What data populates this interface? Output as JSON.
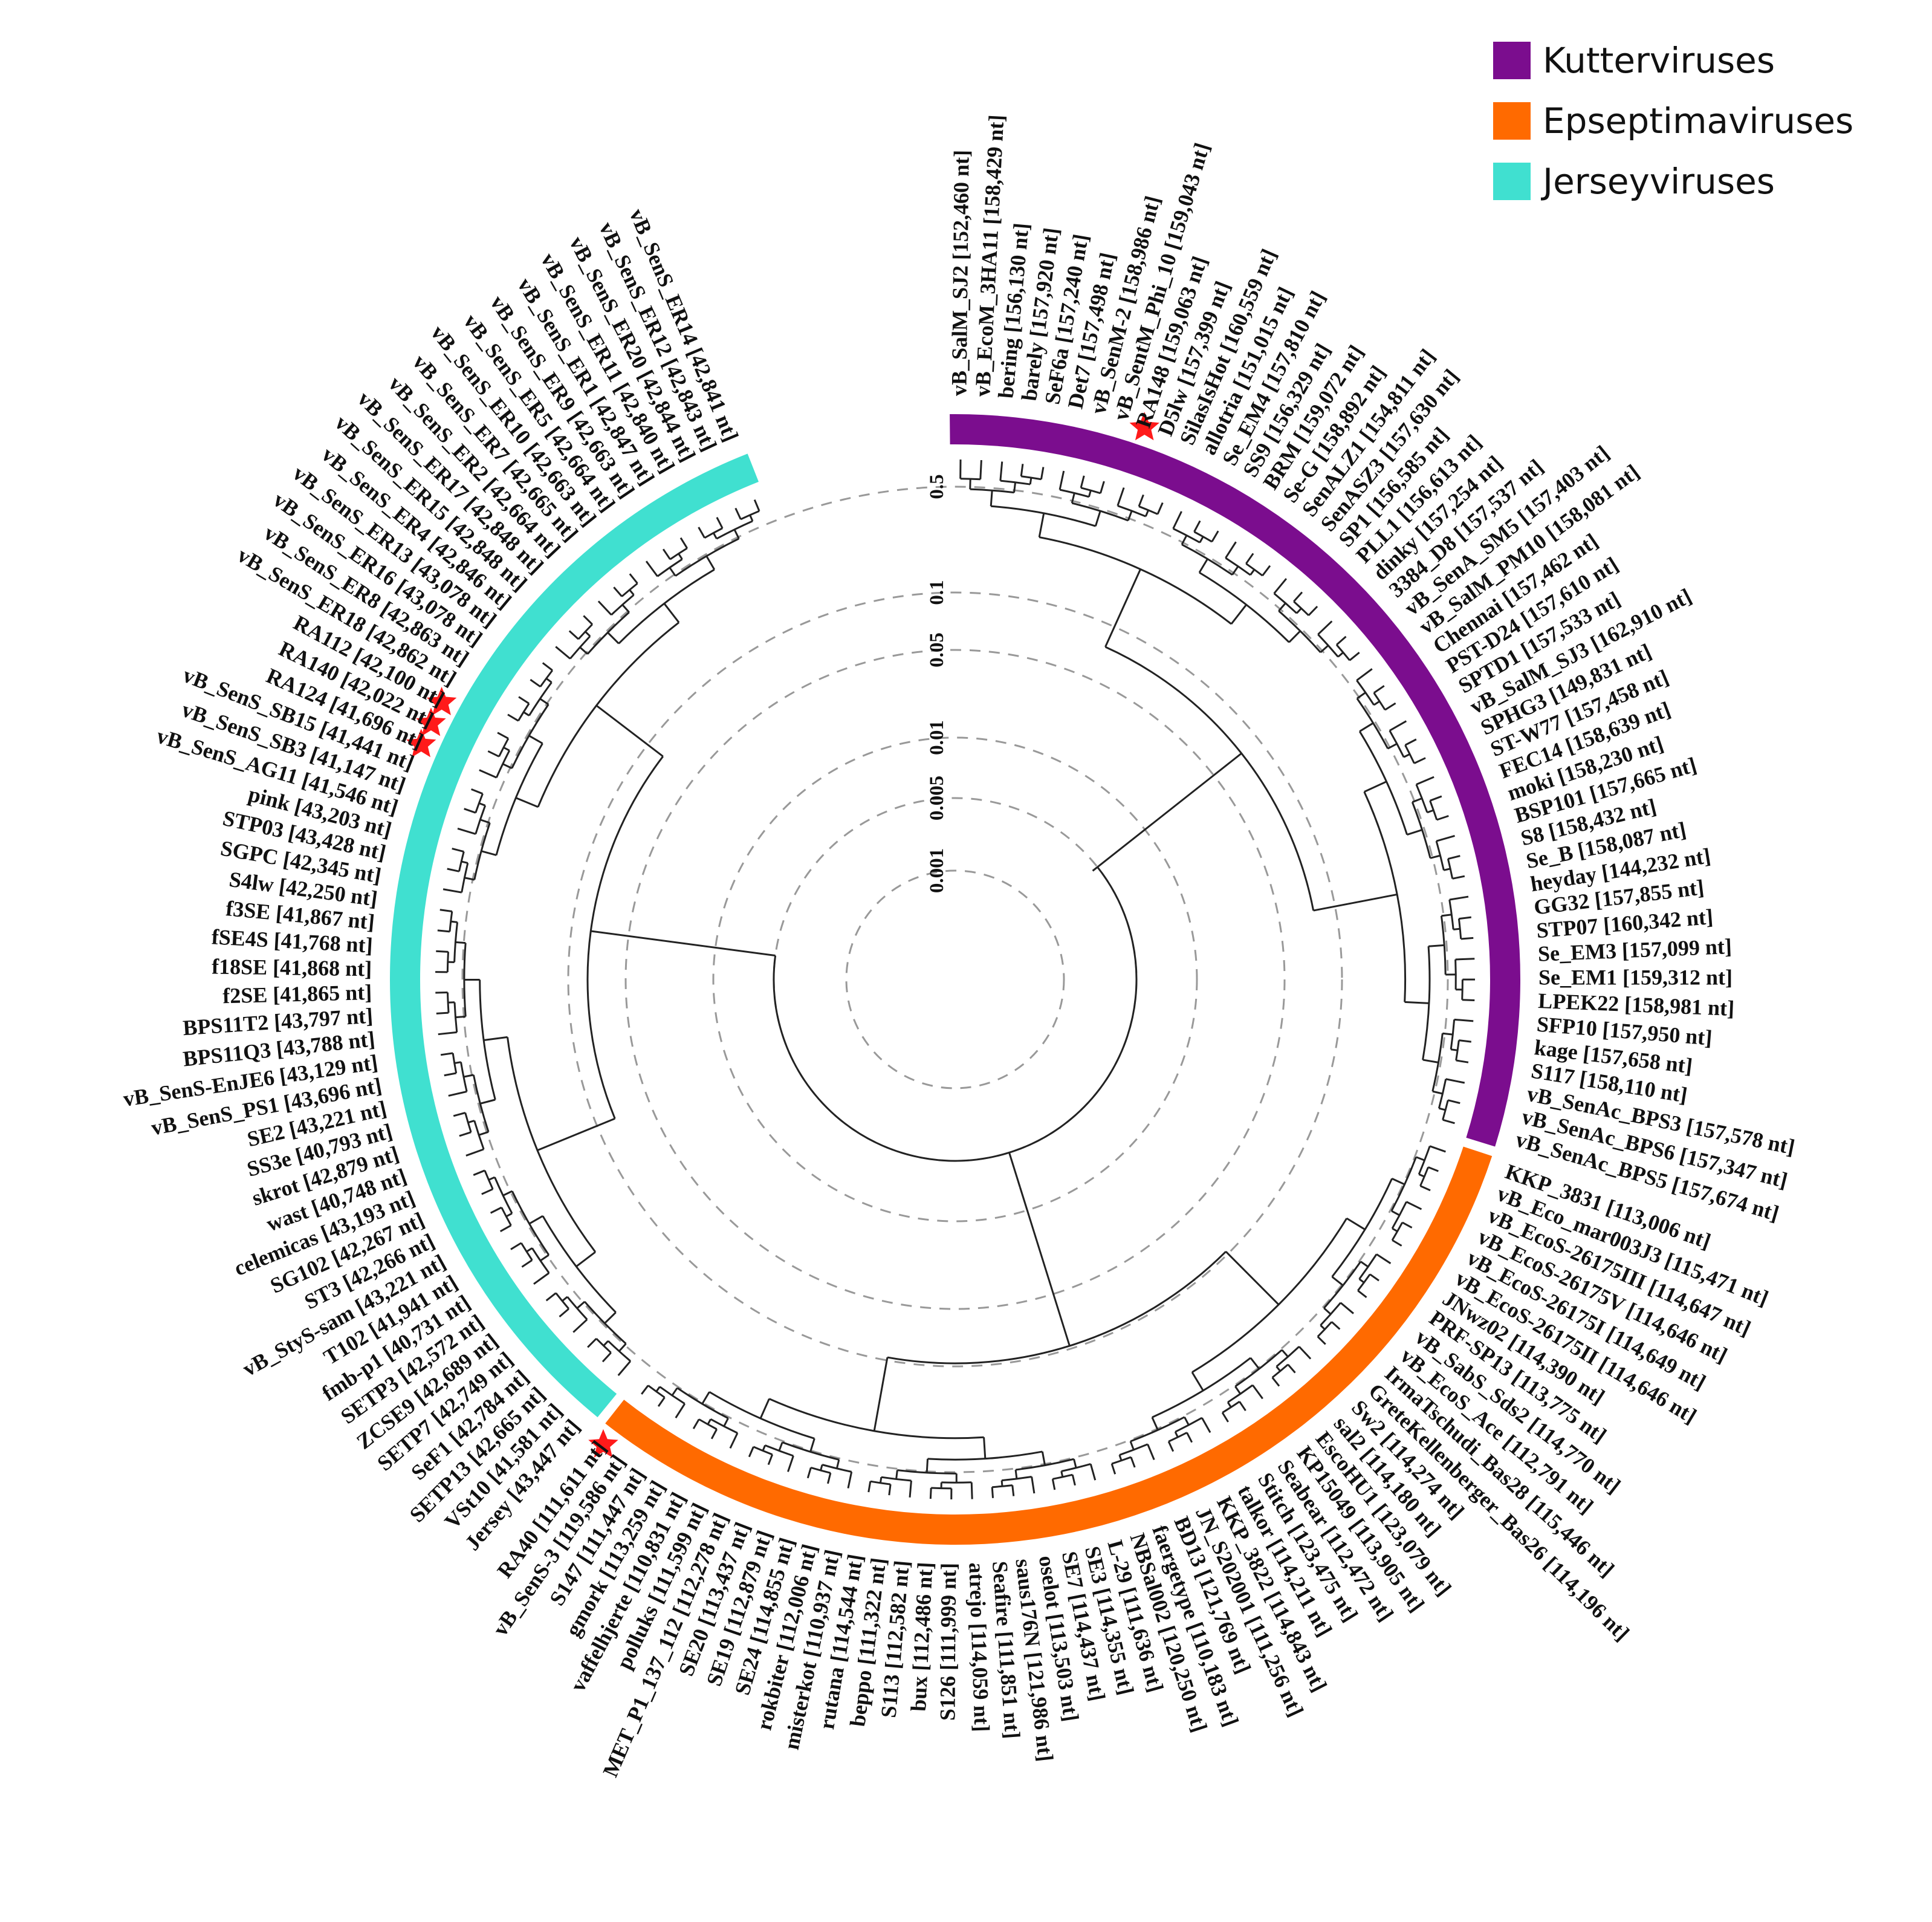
{
  "legend": [
    {
      "label": "Kutterviruses",
      "color": "#7b0d8e"
    },
    {
      "label": "Epseptimaviruses",
      "color": "#ff6a00"
    },
    {
      "label": "Jerseyviruses",
      "color": "#40e0d0"
    }
  ],
  "scale_labels": [
    "0.5",
    "0.1",
    "0.05",
    "0.01",
    "0.005",
    "0.001"
  ],
  "star_color": "#ff1a1a",
  "clades": [
    {
      "name": "Kutterviruses",
      "color": "#7b0d8e",
      "leaves": [
        "vB_SalM_SJ2 [152,460 nt]",
        "vB_EcoM_3HA11 [158,429 nt]",
        "bering [156,130 nt]",
        "barely [157,920 nt]",
        "SeF6a [157,240 nt]",
        "Det7 [157,498 nt]",
        "vB_SenM-2 [158,986 nt]",
        "vB_SentM_Phi_10 [159,043 nt]",
        "RA148 [159,063 nt]",
        "D5lw [157,399 nt]",
        "SilasIsHot [160,559 nt]",
        "allotria [151,015 nt]",
        "Se_EM4 [157,810 nt]",
        "SS9 [156,329 nt]",
        "BRM [159,072 nt]",
        "Se-G [158,892 nt]",
        "SenALZ1 [154,811 nt]",
        "SenASZ3 [157,630 nt]",
        "SP1 [156,585 nt]",
        "PLL1 [156,613 nt]",
        "dinky [157,254 nt]",
        "3384_D8 [157,537 nt]",
        "vB_SenA_SM5 [157,403 nt]",
        "vB_SalM_PM10 [158,081 nt]",
        "Chennai [157,462 nt]",
        "PST-D24 [157,610 nt]",
        "SPTD1 [157,533 nt]",
        "vB_SalM_SJ3 [162,910 nt]",
        "SPHG3 [149,831 nt]",
        "ST-W77 [157,458 nt]",
        "FEC14 [158,639 nt]",
        "moki [158,230 nt]",
        "BSP101 [157,665 nt]",
        "S8 [158,432 nt]",
        "Se_B [158,087 nt]",
        "heyday [144,232 nt]",
        "GG32 [157,855 nt]",
        "STP07 [160,342 nt]",
        "Se_EM3 [157,099 nt]",
        "Se_EM1 [159,312 nt]",
        "LPEK22 [158,981 nt]",
        "SFP10 [157,950 nt]",
        "kage [157,658 nt]",
        "S117 [158,110 nt]",
        "vB_SenAc_BPS3 [157,578 nt]",
        "vB_SenAc_BPS6 [157,347 nt]",
        "vB_SenAc_BPS5 [157,674 nt]"
      ]
    },
    {
      "name": "Epseptimaviruses",
      "color": "#ff6a00",
      "leaves": [
        "KKP_3831 [113,006 nt]",
        "vB_Eco_mar003J3 [115,471 nt]",
        "vB_EcoS-26175III [114,647 nt]",
        "vB_EcoS-26175V [114,646 nt]",
        "vB_EcoS-26175I [114,649 nt]",
        "vB_EcoS-26175II [114,646 nt]",
        "JNwz02 [114,390 nt]",
        "PRF-SP13 [113,775 nt]",
        "vB_SabS_Sds2 [114,770 nt]",
        "vB_EcoS_Ace [112,791 nt]",
        "IrmaTschudi_Bas28 [115,446 nt]",
        "GreteKellenberger_Bas26 [114,196 nt]",
        "Sw2 [114,274 nt]",
        "sal2 [114,180 nt]",
        "EscoHU1 [123,079 nt]",
        "KP15049 [113,905 nt]",
        "Seabear [112,472 nt]",
        "Stitch [123,475 nt]",
        "talkor [114,211 nt]",
        "KKP_3822 [114,843 nt]",
        "JN_S202001 [111,256 nt]",
        "BD13 [121,769 nt]",
        "faergetype [110,183 nt]",
        "NBSal002 [120,250 nt]",
        "L-29 [111,636 nt]",
        "SE3 [114,355 nt]",
        "SE7 [114,437 nt]",
        "oselot [113,503 nt]",
        "saus176N [121,986 nt]",
        "Seafire [111,851 nt]",
        "atrejo [114,059 nt]",
        "S126 [111,999 nt]",
        "bux [112,486 nt]",
        "S113 [112,582 nt]",
        "beppo [111,322 nt]",
        "rutana [114,544 nt]",
        "misterkot [110,937 nt]",
        "rokbiter [112,006 nt]",
        "SE24 [114,855 nt]",
        "SE19 [112,879 nt]",
        "SE20 [113,437 nt]",
        "MET_P1_137_112 [112,278 nt]",
        "polluks [111,599 nt]",
        "vaffelhjerte [110,831 nt]",
        "gmork [113,259 nt]",
        "S147 [111,447 nt]",
        "vB_SenS-3 [119,586 nt]",
        "RA40 [111,611 nt]"
      ]
    },
    {
      "name": "Jerseyviruses",
      "color": "#40e0d0",
      "leaves": [
        "Jersey [43,447 nt]",
        "VSt10 [41,581 nt]",
        "SETP13 [42,665 nt]",
        "SeF1 [42,784 nt]",
        "SETP7 [42,749 nt]",
        "ZCSE9 [42,689 nt]",
        "SETP3 [42,572 nt]",
        "fmb-p1 [40,731 nt]",
        "T102 [41,941 nt]",
        "vB_StyS-sam [43,221 nt]",
        "ST3 [42,266 nt]",
        "SG102 [42,267 nt]",
        "celemicas [43,193 nt]",
        "wast [40,748 nt]",
        "skrot [42,879 nt]",
        "SS3e [40,793 nt]",
        "SE2 [43,221 nt]",
        "vB_SenS_PS1 [43,696 nt]",
        "vB_SenS-EnJE6 [43,129 nt]",
        "BPS11Q3 [43,788 nt]",
        "BPS11T2 [43,797 nt]",
        "f2SE [41,865 nt]",
        "f18SE [41,868 nt]",
        "fSE4S [41,768 nt]",
        "f3SE [41,867 nt]",
        "S4lw [42,250 nt]",
        "SGPC [42,345 nt]",
        "STP03 [43,428 nt]",
        "pink [43,203 nt]",
        "vB_SenS_AG11 [41,546 nt]",
        "vB_SenS_SB3 [41,147 nt]",
        "vB_SenS_SB15 [41,441 nt]",
        "RA124 [41,696 nt]",
        "RA140 [42,022 nt]",
        "RA112 [42,100 nt]",
        "vB_SenS_ER18 [42,862 nt]",
        "vB_SenS_ER8 [42,863 nt]",
        "vB_SenS_ER16 [43,078 nt]",
        "vB_SenS_ER13 [43,078 nt]",
        "vB_SenS_ER4 [42,846 nt]",
        "vB_SenS_ER15 [42,848 nt]",
        "vB_SenS_ER17 [42,848 nt]",
        "vB_SenS_ER2 [42,664 nt]",
        "vB_SenS_ER7 [42,665 nt]",
        "vB_SenS_ER10 [42,663 nt]",
        "vB_SenS_ER5 [42,664 nt]",
        "vB_SenS_ER9 [42,663 nt]",
        "vB_SenS_ER1 [42,847 nt]",
        "vB_SenS_ER11 [42,840 nt]",
        "vB_SenS_ER20 [42,844 nt]",
        "vB_SenS_ER12 [42,843 nt]",
        "vB_SenS_ER14 [42,841 nt]"
      ]
    }
  ],
  "starred": [
    "RA148 [159,063 nt]",
    "RA40 [111,611 nt]",
    "RA124 [41,696 nt]",
    "RA140 [42,022 nt]",
    "RA112 [42,100 nt]"
  ]
}
